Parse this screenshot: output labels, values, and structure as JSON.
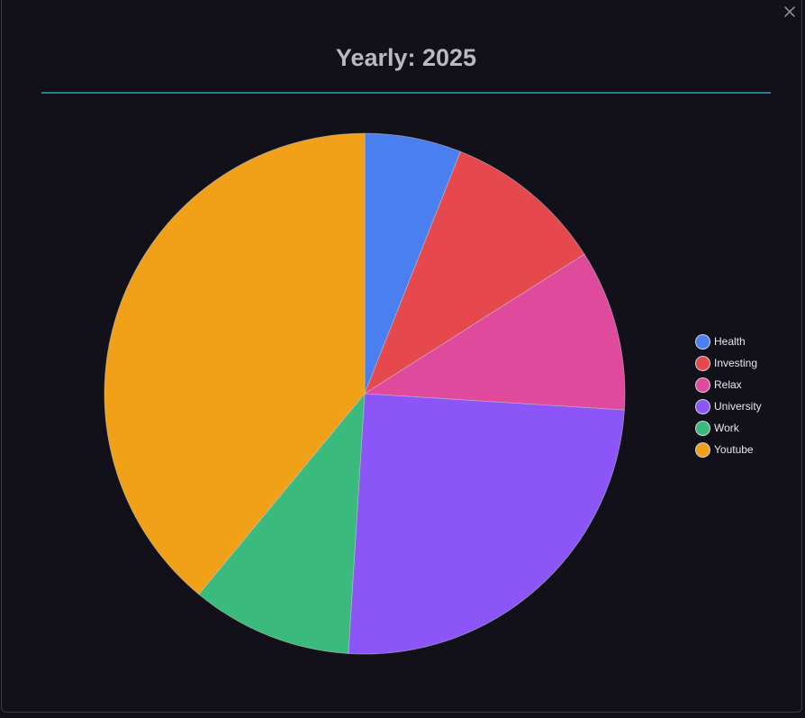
{
  "chart_data": {
    "type": "pie",
    "title": "Yearly: 2025",
    "categories": [
      "Health",
      "Investing",
      "Relax",
      "University",
      "Work",
      "Youtube"
    ],
    "values": [
      6,
      10,
      10,
      25,
      10,
      39
    ],
    "colors": [
      "#4a7ff0",
      "#e5484d",
      "#e04a9c",
      "#8b55f7",
      "#3bba7d",
      "#f0a118"
    ],
    "legend_position": "right",
    "start_angle": "top",
    "direction": "clockwise"
  }
}
